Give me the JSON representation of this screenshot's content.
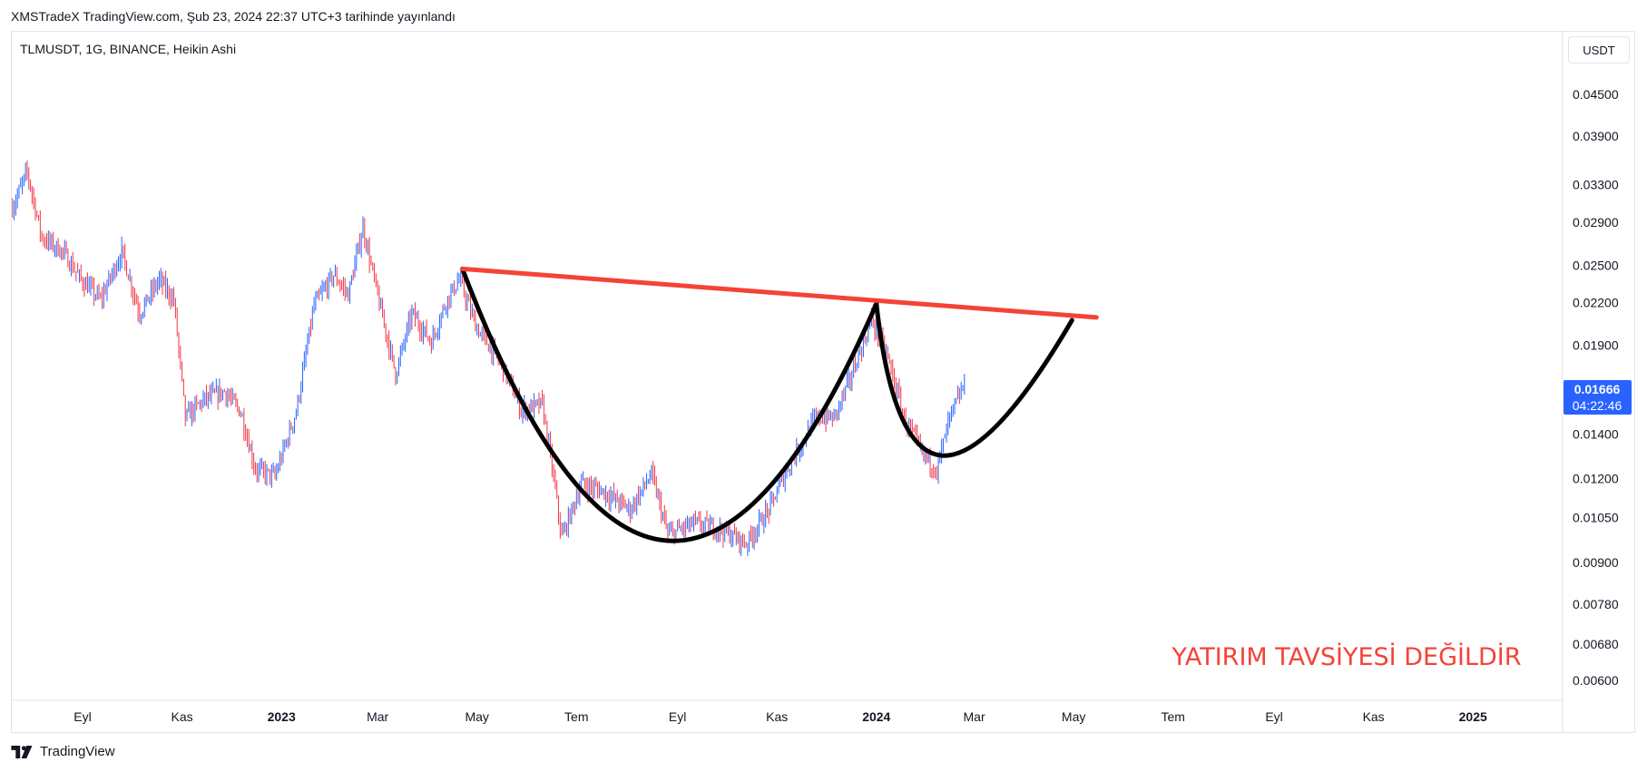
{
  "header": {
    "published_line": "XMSTradeX TradingView.com, Şub 23, 2024 22:37 UTC+3 tarihinde yayınlandı",
    "symbol_line": "TLMUSDT, 1G, BINANCE, Heikin Ashi",
    "currency_button": "USDT"
  },
  "footer": {
    "brand": "TradingView"
  },
  "colors": {
    "up": "#2962ff",
    "down": "#f23645",
    "resistance": "#f44336",
    "pattern": "#000000",
    "price_tag": "#2962ff"
  },
  "chart_data": {
    "type": "line",
    "title": "",
    "symbol": "TLMUSDT",
    "interval": "1G",
    "exchange": "BINANCE",
    "chart_style": "Heikin Ashi",
    "y_scale": "log",
    "ylim": [
      0.0056,
      0.056
    ],
    "y_ticks": [
      "0.04500",
      "0.03900",
      "0.03300",
      "0.02900",
      "0.02500",
      "0.02200",
      "0.01900",
      "0.01400",
      "0.01200",
      "0.01050",
      "0.00900",
      "0.00780",
      "0.00680",
      "0.00600"
    ],
    "x_ticks": [
      {
        "label": "Eyl",
        "date": "2022-09-01",
        "bold": false
      },
      {
        "label": "Kas",
        "date": "2022-11-01",
        "bold": false
      },
      {
        "label": "2023",
        "date": "2023-01-01",
        "bold": true
      },
      {
        "label": "Mar",
        "date": "2023-03-01",
        "bold": false
      },
      {
        "label": "May",
        "date": "2023-05-01",
        "bold": false
      },
      {
        "label": "Tem",
        "date": "2023-07-01",
        "bold": false
      },
      {
        "label": "Eyl",
        "date": "2023-09-01",
        "bold": false
      },
      {
        "label": "Kas",
        "date": "2023-11-01",
        "bold": false
      },
      {
        "label": "2024",
        "date": "2024-01-01",
        "bold": true
      },
      {
        "label": "Mar",
        "date": "2024-03-01",
        "bold": false
      },
      {
        "label": "May",
        "date": "2024-05-01",
        "bold": false
      },
      {
        "label": "Tem",
        "date": "2024-07-01",
        "bold": false
      },
      {
        "label": "Eyl",
        "date": "2024-09-01",
        "bold": false
      },
      {
        "label": "Kas",
        "date": "2024-11-01",
        "bold": false
      },
      {
        "label": "2025",
        "date": "2025-01-01",
        "bold": true
      }
    ],
    "x_start": "2022-07-19",
    "x_end": "2025-02-25",
    "price_path": [
      [
        "2022-07-20",
        0.0305
      ],
      [
        "2022-07-29",
        0.0345
      ],
      [
        "2022-08-07",
        0.0275
      ],
      [
        "2022-08-20",
        0.0262
      ],
      [
        "2022-08-31",
        0.0238
      ],
      [
        "2022-09-12",
        0.0222
      ],
      [
        "2022-09-25",
        0.0262
      ],
      [
        "2022-10-06",
        0.0212
      ],
      [
        "2022-10-18",
        0.0238
      ],
      [
        "2022-10-27",
        0.0222
      ],
      [
        "2022-11-03",
        0.0148
      ],
      [
        "2022-11-15",
        0.0158
      ],
      [
        "2022-11-27",
        0.0162
      ],
      [
        "2022-12-07",
        0.0151
      ],
      [
        "2022-12-16",
        0.0124
      ],
      [
        "2022-12-28",
        0.0121
      ],
      [
        "2023-01-10",
        0.0151
      ],
      [
        "2023-01-21",
        0.0218
      ],
      [
        "2023-02-02",
        0.0242
      ],
      [
        "2023-02-11",
        0.0226
      ],
      [
        "2023-02-20",
        0.0285
      ],
      [
        "2023-03-01",
        0.0225
      ],
      [
        "2023-03-12",
        0.0172
      ],
      [
        "2023-03-22",
        0.0212
      ],
      [
        "2023-04-03",
        0.0192
      ],
      [
        "2023-04-12",
        0.0221
      ],
      [
        "2023-04-20",
        0.0238
      ],
      [
        "2023-05-01",
        0.0201
      ],
      [
        "2023-05-16",
        0.0178
      ],
      [
        "2023-05-28",
        0.0152
      ],
      [
        "2023-06-10",
        0.0155
      ],
      [
        "2023-06-16",
        0.0125
      ],
      [
        "2023-06-22",
        0.0098
      ],
      [
        "2023-07-04",
        0.0118
      ],
      [
        "2023-07-17",
        0.0115
      ],
      [
        "2023-08-03",
        0.0108
      ],
      [
        "2023-08-16",
        0.0122
      ],
      [
        "2023-08-26",
        0.0099
      ],
      [
        "2023-09-11",
        0.0103
      ],
      [
        "2023-09-27",
        0.0101
      ],
      [
        "2023-10-13",
        0.0096
      ],
      [
        "2023-10-27",
        0.0108
      ],
      [
        "2023-11-10",
        0.0128
      ],
      [
        "2023-11-25",
        0.0148
      ],
      [
        "2023-12-06",
        0.0148
      ],
      [
        "2023-12-17",
        0.0172
      ],
      [
        "2023-12-29",
        0.0208
      ],
      [
        "2024-01-08",
        0.0182
      ],
      [
        "2024-01-18",
        0.0148
      ],
      [
        "2024-01-29",
        0.0131
      ],
      [
        "2024-02-07",
        0.0124
      ],
      [
        "2024-02-15",
        0.0148
      ],
      [
        "2024-02-24",
        0.0166
      ]
    ],
    "pattern_lines": {
      "resistance_line": [
        [
          "2023-04-22",
          0.0247
        ],
        [
          "2024-01-01",
          0.0219
        ],
        [
          "2024-05-15",
          0.0209
        ]
      ],
      "cup": [
        [
          "2023-04-22",
          0.0247
        ],
        [
          "2023-08-25",
          0.0097
        ],
        [
          "2024-01-01",
          0.0219
        ]
      ],
      "handle": [
        [
          "2024-01-01",
          0.0219
        ],
        [
          "2024-02-10",
          0.013
        ],
        [
          "2024-04-30",
          0.0207
        ]
      ]
    },
    "last_price": "0.01666",
    "countdown": "04:22:46",
    "annotation": "YATIRIM TAVSİYESİ DEĞİLDİR"
  }
}
